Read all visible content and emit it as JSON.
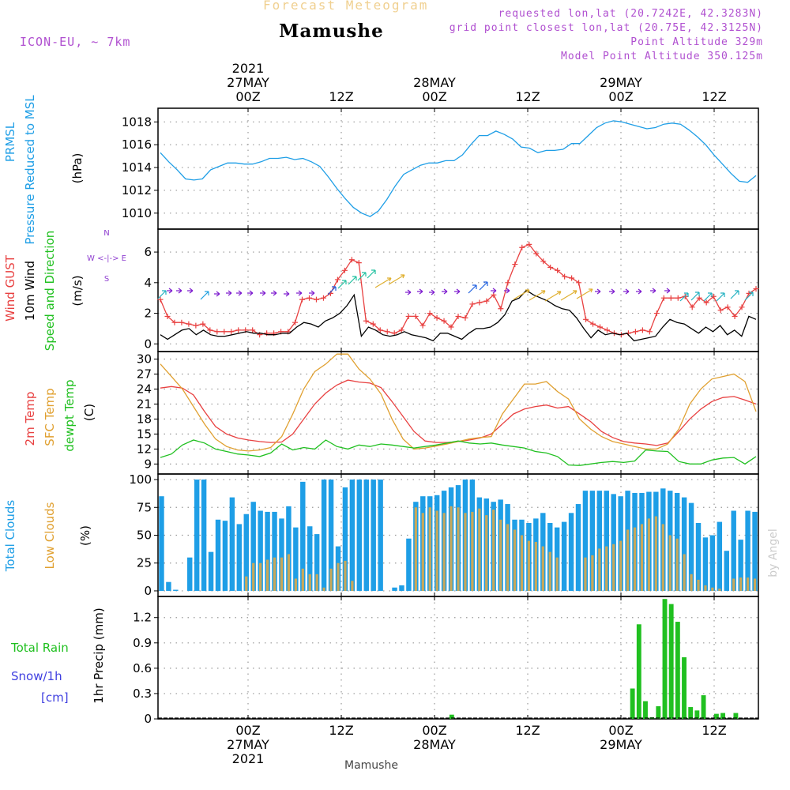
{
  "header": {
    "heading": "Forecast Meteogram",
    "location": "Mamushe",
    "model": "ICON-EU, ~ 7km",
    "requested": "requested lon,lat (20.7242E, 42.3283N)",
    "gridpoint": "grid point closest lon,lat (20.75E, 42.3125N)",
    "point_alt": "Point Altitude 329m",
    "model_alt": "Model Point Altitude 350.125m",
    "footer_location": "Mamushe",
    "watermark": "by Angel"
  },
  "time_axis": {
    "hour_labels": [
      "00Z",
      "12Z",
      "00Z",
      "12Z",
      "00Z",
      "12Z"
    ],
    "date_labels": [
      "27MAY",
      "28MAY",
      "29MAY"
    ],
    "year": "2021"
  },
  "colors": {
    "blue": "#1e9ee6",
    "red": "#e84040",
    "orange": "#e0a030",
    "green": "#20c020",
    "black": "#000000",
    "purple": "#9020e0",
    "snow": "#4040e0",
    "cloud": "#1e9ee6",
    "lowcloud": "#c8a85a"
  },
  "chart_data": [
    {
      "type": "line",
      "id": "pressure",
      "ylabels": [
        "PRMSL",
        "Pressure Reduced to MSL",
        "(hPa)"
      ],
      "ylim": [
        1008.6,
        1019.2
      ],
      "ticks": [
        1010,
        1012,
        1014,
        1016,
        1018
      ],
      "series": [
        {
          "name": "PRMSL",
          "values": [
            1015.3,
            1014.5,
            1013.8,
            1013.0,
            1012.9,
            1013.0,
            1013.8,
            1014.1,
            1014.4,
            1014.4,
            1014.3,
            1014.3,
            1014.5,
            1014.8,
            1014.8,
            1014.9,
            1014.7,
            1014.8,
            1014.5,
            1014.1,
            1013.2,
            1012.2,
            1011.3,
            1010.5,
            1010.0,
            1009.7,
            1010.2,
            1011.2,
            1012.4,
            1013.4,
            1013.8,
            1014.2,
            1014.4,
            1014.4,
            1014.6,
            1014.6,
            1015.1,
            1016.0,
            1016.8,
            1016.8,
            1017.2,
            1016.9,
            1016.5,
            1015.8,
            1015.7,
            1015.3,
            1015.5,
            1015.5,
            1015.6,
            1016.1,
            1016.1,
            1016.8,
            1017.5,
            1017.9,
            1018.1,
            1018.0,
            1017.8,
            1017.6,
            1017.4,
            1017.5,
            1017.8,
            1017.9,
            1017.8,
            1017.3,
            1016.7,
            1016.0,
            1015.1,
            1014.3,
            1013.5,
            1012.8,
            1012.7,
            1013.3
          ]
        }
      ]
    },
    {
      "type": "line",
      "id": "wind",
      "ylabels": [
        "Wind GUST",
        "10m Wind",
        "Speed and Direction",
        "(m/s)"
      ],
      "ylim": [
        -0.5,
        7.5
      ],
      "ticks": [
        0,
        2,
        4,
        6
      ],
      "compass": [
        "N",
        "W <-|-> E",
        "S"
      ],
      "series": [
        {
          "name": "Wind GUST",
          "values": [
            2.9,
            1.8,
            1.4,
            1.4,
            1.3,
            1.2,
            1.3,
            0.9,
            0.8,
            0.8,
            0.8,
            0.9,
            0.9,
            0.9,
            0.6,
            0.7,
            0.7,
            0.8,
            0.8,
            1.4,
            2.9,
            3.0,
            2.9,
            3.0,
            3.3,
            4.2,
            4.8,
            5.5,
            5.3,
            1.5,
            1.3,
            0.9,
            0.8,
            0.7,
            0.9,
            1.8,
            1.8,
            1.2,
            2.0,
            1.7,
            1.5,
            1.1,
            1.8,
            1.7,
            2.6,
            2.7,
            2.8,
            3.2,
            2.3,
            4.0,
            5.2,
            6.3,
            6.5,
            5.9,
            5.4,
            5.0,
            4.8,
            4.4,
            4.3,
            4.0,
            1.6,
            1.3,
            1.1,
            0.9,
            0.7,
            0.6,
            0.7,
            0.8,
            0.9,
            0.8,
            2.0,
            3.0,
            3.0,
            3.0,
            3.1,
            2.4,
            3.0,
            2.7,
            3.1,
            2.2,
            2.4,
            1.8,
            2.4,
            3.3,
            3.6
          ]
        },
        {
          "name": "10m Wind",
          "values": [
            0.6,
            0.3,
            0.6,
            0.9,
            1.0,
            0.6,
            0.9,
            0.6,
            0.5,
            0.5,
            0.6,
            0.7,
            0.8,
            0.7,
            0.7,
            0.6,
            0.6,
            0.7,
            0.7,
            1.1,
            1.4,
            1.3,
            1.1,
            1.5,
            1.7,
            2.0,
            2.5,
            3.2,
            0.5,
            1.1,
            0.9,
            0.6,
            0.5,
            0.6,
            0.8,
            0.6,
            0.5,
            0.4,
            0.2,
            0.7,
            0.7,
            0.5,
            0.3,
            0.7,
            1.0,
            1.0,
            1.1,
            1.4,
            1.9,
            2.8,
            3.0,
            3.5,
            3.2,
            3.0,
            2.8,
            2.5,
            2.3,
            2.2,
            1.7,
            1.0,
            0.4,
            0.9,
            0.6,
            0.7,
            0.6,
            0.7,
            0.2,
            0.3,
            0.4,
            0.5,
            1.1,
            1.6,
            1.4,
            1.3,
            1.0,
            0.7,
            1.1,
            0.8,
            1.2,
            0.6,
            0.9,
            0.5,
            1.8,
            1.6
          ]
        }
      ]
    },
    {
      "type": "line",
      "id": "temp",
      "ylabels": [
        "2m Temp",
        "SFC Temp",
        "dewpt Temp",
        "(C)"
      ],
      "ylim": [
        7,
        31.5
      ],
      "ticks": [
        9,
        12,
        15,
        18,
        21,
        24,
        27,
        30
      ],
      "series": [
        {
          "name": "2m Temp",
          "values": [
            24.2,
            24.5,
            24.2,
            22.8,
            19.5,
            16.5,
            15.0,
            14.2,
            13.8,
            13.5,
            13.3,
            13.4,
            15.0,
            18.0,
            21.0,
            23.2,
            24.8,
            25.8,
            25.4,
            25.2,
            24.3,
            21.5,
            18.5,
            15.5,
            13.6,
            13.3,
            13.3,
            13.5,
            13.8,
            14.2,
            15.0,
            17.0,
            19.0,
            20.0,
            20.5,
            20.8,
            20.2,
            20.5,
            19.0,
            17.5,
            15.5,
            14.3,
            13.5,
            13.2,
            13.0,
            12.7,
            13.2,
            15.5,
            18.0,
            20.0,
            21.5,
            22.3,
            22.5,
            21.8,
            21.0
          ]
        },
        {
          "name": "SFC Temp",
          "values": [
            29.0,
            26.5,
            24.0,
            20.5,
            17.0,
            14.0,
            12.5,
            11.8,
            11.6,
            11.8,
            12.3,
            14.5,
            19.0,
            24.0,
            27.5,
            29.0,
            31.0,
            31.0,
            28.0,
            26.0,
            23.0,
            18.0,
            14.0,
            12.0,
            12.2,
            12.6,
            13.0,
            13.5,
            14.0,
            14.3,
            14.5,
            19.0,
            22.0,
            25.0,
            25.0,
            25.5,
            23.5,
            22.0,
            18.0,
            16.0,
            14.5,
            13.5,
            13.0,
            12.5,
            12.0,
            12.0,
            13.0,
            16.0,
            21.0,
            24.0,
            26.0,
            26.5,
            27.0,
            25.5,
            19.5
          ]
        },
        {
          "name": "dewpt Temp",
          "values": [
            10.3,
            11.0,
            12.8,
            13.8,
            13.2,
            12.0,
            11.5,
            11.0,
            10.8,
            10.5,
            11.2,
            13.0,
            11.8,
            12.3,
            12.0,
            13.8,
            12.5,
            12.0,
            12.8,
            12.5,
            13.0,
            12.8,
            12.5,
            12.2,
            12.5,
            12.8,
            13.2,
            13.6,
            13.2,
            13.0,
            13.2,
            12.8,
            12.5,
            12.2,
            11.5,
            11.2,
            10.5,
            8.8,
            8.7,
            9.0,
            9.3,
            9.5,
            9.3,
            9.6,
            11.8,
            11.6,
            11.5,
            9.5,
            9.0,
            9.0,
            9.8,
            10.2,
            10.3,
            9.0,
            10.5
          ]
        }
      ]
    },
    {
      "type": "bar",
      "id": "clouds",
      "ylabels": [
        "Total Clouds",
        "Low Clouds",
        "(%)"
      ],
      "ylim": [
        -5,
        105
      ],
      "ticks": [
        0,
        25,
        50,
        75,
        100
      ],
      "series": [
        {
          "name": "Total Clouds",
          "values": [
            85,
            8,
            1,
            0,
            30,
            100,
            100,
            35,
            64,
            63,
            84,
            60,
            69,
            80,
            72,
            71,
            71,
            65,
            76,
            57,
            98,
            58,
            51,
            100,
            100,
            40,
            93,
            100,
            100,
            100,
            100,
            100,
            0,
            3,
            5,
            47,
            80,
            85,
            85,
            86,
            90,
            93,
            95,
            100,
            100,
            84,
            83,
            80,
            82,
            78,
            64,
            64,
            61,
            65,
            70,
            61,
            57,
            62,
            70,
            78,
            90,
            90,
            90,
            90,
            87,
            85,
            90,
            88,
            88,
            89,
            89,
            92,
            90,
            88,
            84,
            79,
            61,
            48,
            50,
            62,
            36,
            72,
            46,
            72,
            71
          ]
        },
        {
          "name": "Low Clouds",
          "values": [
            0,
            0,
            0,
            0,
            0,
            0,
            0,
            0,
            0,
            0,
            0,
            0,
            13,
            25,
            25,
            28,
            30,
            30,
            33,
            11,
            20,
            15,
            15,
            3,
            20,
            25,
            27,
            9,
            0,
            0,
            0,
            0,
            0,
            0,
            0,
            0,
            75,
            70,
            75,
            72,
            70,
            76,
            75,
            70,
            71,
            74,
            68,
            73,
            64,
            60,
            55,
            50,
            45,
            44,
            40,
            35,
            30,
            0,
            0,
            0,
            30,
            32,
            38,
            40,
            42,
            45,
            55,
            57,
            60,
            65,
            67,
            60,
            50,
            47,
            33,
            15,
            10,
            5,
            3,
            2,
            0,
            11,
            12,
            12,
            11
          ]
        }
      ]
    },
    {
      "type": "bar",
      "id": "precip",
      "ylabels": [
        "Total  Rain",
        "Snow/1h",
        "[cm]",
        "1hr Precip (mm)"
      ],
      "ylim": [
        0,
        1.45
      ],
      "ticks": [
        0,
        0.3,
        0.6,
        0.9,
        1.2
      ],
      "tick_labels": [
        "0",
        "0.3",
        "0.6",
        "0.9",
        "1.2"
      ],
      "series": [
        {
          "name": "Total Rain",
          "values": [
            0,
            0,
            0,
            0,
            0,
            0,
            0,
            0,
            0,
            0,
            0,
            0,
            0,
            0,
            0,
            0,
            0,
            0,
            0,
            0,
            0,
            0,
            0,
            0,
            0,
            0,
            0,
            0,
            0,
            0,
            0,
            0,
            0,
            0,
            0,
            0,
            0,
            0,
            0,
            0,
            0,
            0,
            0,
            0,
            0,
            0.05,
            0,
            0,
            0,
            0,
            0,
            0,
            0,
            0,
            0,
            0,
            0,
            0,
            0,
            0,
            0,
            0,
            0,
            0,
            0,
            0,
            0,
            0,
            0,
            0,
            0,
            0,
            0,
            0.36,
            1.12,
            0.21,
            0.02,
            0.15,
            1.42,
            1.36,
            1.15,
            0.73,
            0.14,
            0.1,
            0.28,
            0,
            0.06,
            0.07,
            0,
            0.07,
            0,
            0,
            0
          ]
        }
      ]
    }
  ]
}
